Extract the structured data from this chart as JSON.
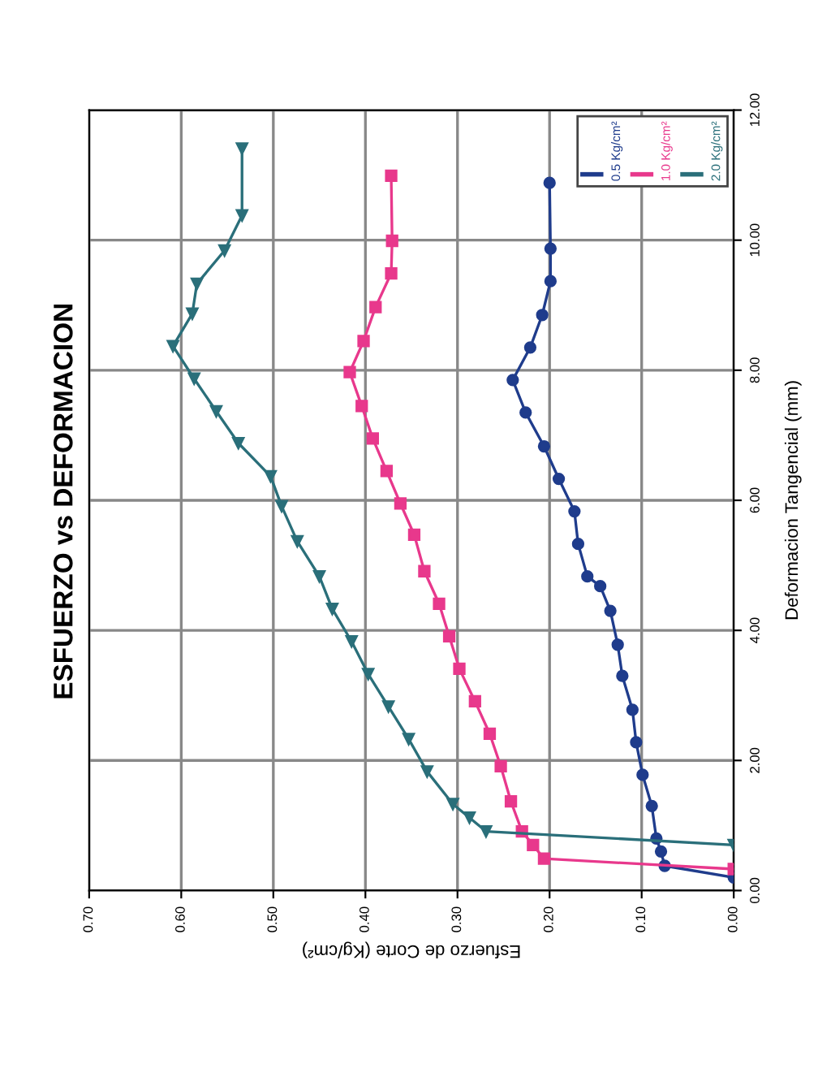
{
  "chart_data": {
    "type": "line",
    "title": "ESFUERZO vs DEFORMACION",
    "ylabel": "Deformacion Tangencial (mm)",
    "xlabel": "Esfuerzo de Corte (Kg/cm²)",
    "ylim": [
      0,
      12
    ],
    "yticks": [
      {
        "value": 0,
        "label": "0.00"
      },
      {
        "value": 2,
        "label": "2.00"
      },
      {
        "value": 4,
        "label": "4.00"
      },
      {
        "value": 6,
        "label": "6.00"
      },
      {
        "value": 8,
        "label": "8.00"
      },
      {
        "value": 10,
        "label": "10.00"
      },
      {
        "value": 12,
        "label": "12.00"
      }
    ],
    "xlim": [
      0.7,
      0
    ],
    "xticks": [
      {
        "value": 0,
        "label": "0.00"
      },
      {
        "value": 0.1,
        "label": "0.10"
      },
      {
        "value": 0.2,
        "label": "0.20"
      },
      {
        "value": 0.3,
        "label": "0.30"
      },
      {
        "value": 0.4,
        "label": "0.40"
      },
      {
        "value": 0.5,
        "label": "0.50"
      },
      {
        "value": 0.6,
        "label": "0.60"
      },
      {
        "value": 0.7,
        "label": "0.70"
      }
    ],
    "grid": true,
    "legend": "top right",
    "series": [
      {
        "name": "0.5 Kg/cm²",
        "color": "#1f3c8c",
        "marker": "circle",
        "values": [
          0.2,
          0.38,
          0.6,
          0.8,
          1.3,
          1.78,
          2.28,
          2.78,
          3.3,
          3.78,
          4.3,
          4.68,
          4.83,
          5.33,
          5.83,
          6.33,
          6.83,
          7.35,
          7.85,
          8.35,
          8.85,
          9.37,
          9.87,
          10.88
        ],
        "x": [
          0.0,
          0.075,
          0.079,
          0.084,
          0.089,
          0.099,
          0.106,
          0.11,
          0.121,
          0.126,
          0.134,
          0.145,
          0.159,
          0.169,
          0.173,
          0.19,
          0.206,
          0.226,
          0.24,
          0.221,
          0.208,
          0.199,
          0.199,
          0.2
        ]
      },
      {
        "name": "1.0 Kg/cm²",
        "color": "#e8388c",
        "marker": "square",
        "values": [
          0.33,
          0.49,
          0.7,
          0.91,
          1.37,
          1.91,
          2.41,
          2.91,
          3.41,
          3.91,
          4.41,
          4.91,
          5.47,
          5.95,
          6.45,
          6.95,
          7.45,
          7.97,
          8.45,
          8.97,
          9.49,
          9.99,
          10.99
        ],
        "x": [
          0.0,
          0.206,
          0.218,
          0.23,
          0.242,
          0.253,
          0.265,
          0.281,
          0.298,
          0.309,
          0.32,
          0.336,
          0.347,
          0.362,
          0.377,
          0.392,
          0.404,
          0.417,
          0.402,
          0.389,
          0.372,
          0.371,
          0.372
        ]
      },
      {
        "name": "2.0 Kg/cm²",
        "color": "#2a6f7a",
        "marker": "triangle",
        "values": [
          0.7,
          0.91,
          1.12,
          1.33,
          1.83,
          2.33,
          2.83,
          3.33,
          3.83,
          4.33,
          4.83,
          5.37,
          5.91,
          6.37,
          6.88,
          7.37,
          7.87,
          8.37,
          8.87,
          9.33,
          9.84,
          10.38,
          11.41
        ],
        "x": [
          0.0,
          0.269,
          0.287,
          0.305,
          0.333,
          0.353,
          0.375,
          0.397,
          0.415,
          0.436,
          0.45,
          0.474,
          0.491,
          0.503,
          0.538,
          0.562,
          0.586,
          0.609,
          0.588,
          0.583,
          0.553,
          0.534,
          0.534
        ]
      }
    ]
  }
}
